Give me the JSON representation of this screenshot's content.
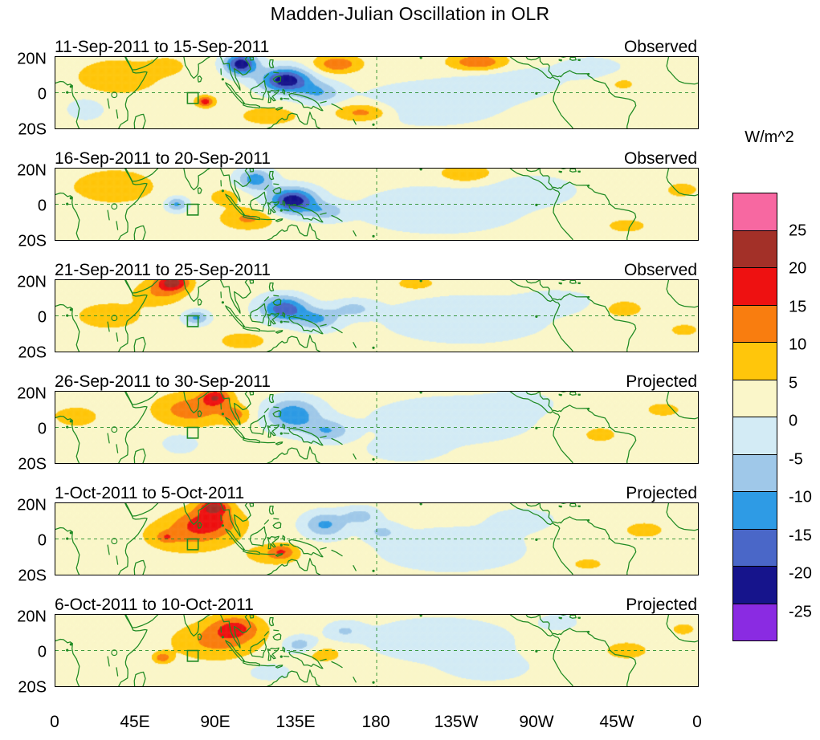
{
  "chart_data": {
    "type": "heatmap",
    "subtype": "filled-contour longitude-latitude anomaly maps, 6 stacked panels",
    "title": "Madden-Julian Oscillation in OLR",
    "coast_color": "#1E8A22",
    "axes": {
      "lon_ticks": [
        "0",
        "45E",
        "90E",
        "135E",
        "180",
        "135W",
        "90W",
        "45W",
        "0"
      ],
      "lat_ticks": [
        "20N",
        "0",
        "20S"
      ],
      "lon_range_deg": [
        0,
        360
      ],
      "lat_range_deg": [
        -20,
        20
      ],
      "dashed_equator_line": true,
      "dashed_dateline_180": true
    },
    "colorbar": {
      "unit": "W/m^2",
      "tick_labels": [
        "25",
        "20",
        "15",
        "10",
        "5",
        "0",
        "-5",
        "-10",
        "-15",
        "-20",
        "-25"
      ],
      "levels": [
        -25,
        -20,
        -15,
        -10,
        -5,
        0,
        5,
        10,
        15,
        20,
        25
      ],
      "colors": [
        "#8A2BE2",
        "#16148C",
        "#4A67C8",
        "#2E9BE5",
        "#9FC8E9",
        "#D3EBF5",
        "#FAF6C9",
        "#FFC60B",
        "#F97D0F",
        "#EE1111",
        "#A33028",
        "#F768A1"
      ]
    },
    "reference_box": {
      "lon_min": 74,
      "lon_max": 80,
      "lat_min": -6,
      "lat_max": 0
    },
    "anomaly_format": "[center_lon_degE, center_lat_deg, lon_radius_deg, lat_radius_deg, amplitude_W_per_m2]",
    "panels": [
      {
        "date_range": "11-Sep-2011 to 15-Sep-2011",
        "source_label": "Observed",
        "base": 2,
        "anomalies": [
          [
            104,
            16,
            9,
            6,
            -26
          ],
          [
            129,
            7,
            14,
            7,
            -26
          ],
          [
            148,
            0,
            12,
            6,
            -11
          ],
          [
            84,
            -5,
            5,
            3,
            16
          ],
          [
            158,
            16,
            13,
            5,
            12
          ],
          [
            237,
            17,
            16,
            5,
            13
          ],
          [
            35,
            9,
            24,
            10,
            7
          ],
          [
            63,
            15,
            10,
            5,
            5
          ],
          [
            172,
            -11,
            15,
            5,
            11
          ],
          [
            120,
            -13,
            16,
            5,
            7
          ],
          [
            210,
            -6,
            40,
            12,
            -6
          ],
          [
            255,
            6,
            28,
            9,
            -5
          ],
          [
            300,
            14,
            18,
            6,
            -5
          ],
          [
            17,
            -9,
            10,
            6,
            -6
          ],
          [
            318,
            5,
            10,
            5,
            4
          ]
        ]
      },
      {
        "date_range": "16-Sep-2011 to 20-Sep-2011",
        "source_label": "Observed",
        "base": 2,
        "anomalies": [
          [
            133,
            2,
            13,
            7,
            -26
          ],
          [
            112,
            14,
            10,
            6,
            -15
          ],
          [
            68,
            0,
            6,
            4,
            -13
          ],
          [
            152,
            -4,
            11,
            5,
            -9
          ],
          [
            33,
            10,
            22,
            9,
            8
          ],
          [
            95,
            4,
            9,
            5,
            6
          ],
          [
            108,
            -8,
            15,
            6,
            9
          ],
          [
            230,
            17,
            15,
            5,
            8
          ],
          [
            215,
            -3,
            45,
            13,
            -6
          ],
          [
            268,
            8,
            24,
            8,
            -5
          ],
          [
            320,
            -12,
            18,
            6,
            4
          ],
          [
            350,
            8,
            12,
            6,
            4
          ]
        ]
      },
      {
        "date_range": "21-Sep-2011 to 25-Sep-2011",
        "source_label": "Observed",
        "base": 2,
        "anomalies": [
          [
            66,
            19,
            9,
            5,
            19
          ],
          [
            58,
            13,
            14,
            7,
            8
          ],
          [
            128,
            4,
            13,
            7,
            -21
          ],
          [
            147,
            -2,
            12,
            6,
            -12
          ],
          [
            167,
            4,
            12,
            5,
            -8
          ],
          [
            79,
            -1,
            7,
            4,
            -13
          ],
          [
            30,
            0,
            20,
            8,
            6
          ],
          [
            105,
            -14,
            14,
            5,
            6
          ],
          [
            202,
            18,
            12,
            4,
            6
          ],
          [
            230,
            -2,
            45,
            13,
            -6
          ],
          [
            282,
            8,
            20,
            6,
            -5
          ],
          [
            318,
            4,
            14,
            6,
            5
          ],
          [
            352,
            -8,
            12,
            5,
            4
          ]
        ]
      },
      {
        "date_range": "26-Sep-2011 to 30-Sep-2011",
        "source_label": "Projected",
        "base": 2,
        "anomalies": [
          [
            90,
            17,
            8,
            5,
            15
          ],
          [
            76,
            10,
            20,
            9,
            11
          ],
          [
            101,
            7,
            8,
            5,
            9
          ],
          [
            133,
            7,
            15,
            9,
            -16
          ],
          [
            153,
            -2,
            12,
            6,
            -11
          ],
          [
            70,
            -9,
            9,
            5,
            -7
          ],
          [
            12,
            6,
            15,
            7,
            5
          ],
          [
            222,
            4,
            45,
            13,
            -6
          ],
          [
            196,
            -13,
            20,
            6,
            -5
          ],
          [
            305,
            -4,
            16,
            7,
            4
          ],
          [
            260,
            14,
            18,
            6,
            -4
          ],
          [
            340,
            10,
            14,
            6,
            4
          ]
        ]
      },
      {
        "date_range": "1-Oct-2011 to 5-Oct-2011",
        "source_label": "Projected",
        "base": 2,
        "anomalies": [
          [
            89,
            18,
            8,
            4,
            17
          ],
          [
            86,
            10,
            17,
            8,
            13
          ],
          [
            74,
            2,
            25,
            10,
            8
          ],
          [
            62,
            1,
            5,
            3,
            7
          ],
          [
            127,
            -7,
            7,
            4,
            9
          ],
          [
            122,
            -9,
            16,
            6,
            6
          ],
          [
            151,
            8,
            12,
            7,
            -13
          ],
          [
            171,
            13,
            10,
            5,
            -9
          ],
          [
            183,
            4,
            10,
            5,
            -7
          ],
          [
            222,
            -6,
            40,
            12,
            -6
          ],
          [
            262,
            11,
            20,
            7,
            -4
          ],
          [
            330,
            5,
            18,
            7,
            4
          ],
          [
            298,
            -14,
            14,
            5,
            4
          ]
        ]
      },
      {
        "date_range": "6-Oct-2011 to 10-Oct-2011",
        "source_label": "Projected",
        "base": 2,
        "anomalies": [
          [
            101,
            13,
            14,
            7,
            12
          ],
          [
            90,
            5,
            24,
            10,
            9
          ],
          [
            60,
            -4,
            5,
            3,
            11
          ],
          [
            150,
            -2,
            12,
            5,
            6
          ],
          [
            137,
            3,
            9,
            5,
            -10
          ],
          [
            162,
            11,
            10,
            5,
            -7
          ],
          [
            120,
            -12,
            12,
            5,
            -5
          ],
          [
            215,
            6,
            40,
            12,
            -6
          ],
          [
            243,
            -10,
            25,
            8,
            -4
          ],
          [
            320,
            0,
            20,
            8,
            4
          ],
          [
            352,
            12,
            10,
            5,
            4
          ],
          [
            282,
            16,
            12,
            5,
            -4
          ]
        ]
      }
    ]
  }
}
